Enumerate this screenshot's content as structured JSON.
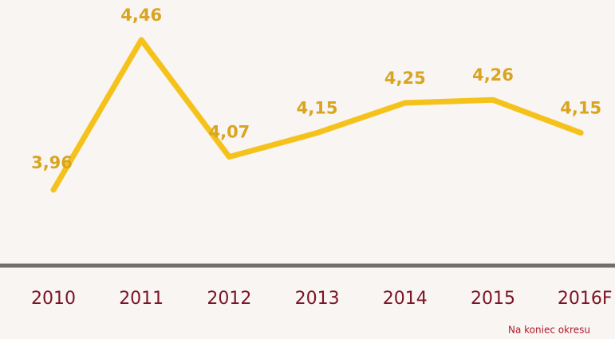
{
  "chart_data": {
    "type": "line",
    "categories": [
      "2010",
      "2011",
      "2012",
      "2013",
      "2014",
      "2015",
      "2016F"
    ],
    "values": [
      3.96,
      4.46,
      4.07,
      4.15,
      4.25,
      4.26,
      4.15
    ],
    "value_labels": [
      "3,96",
      "4,46",
      "4,07",
      "4,15",
      "4,25",
      "4,26",
      "4,15"
    ],
    "color": "#f5c21b",
    "footnote": "Na koniec okresu"
  }
}
